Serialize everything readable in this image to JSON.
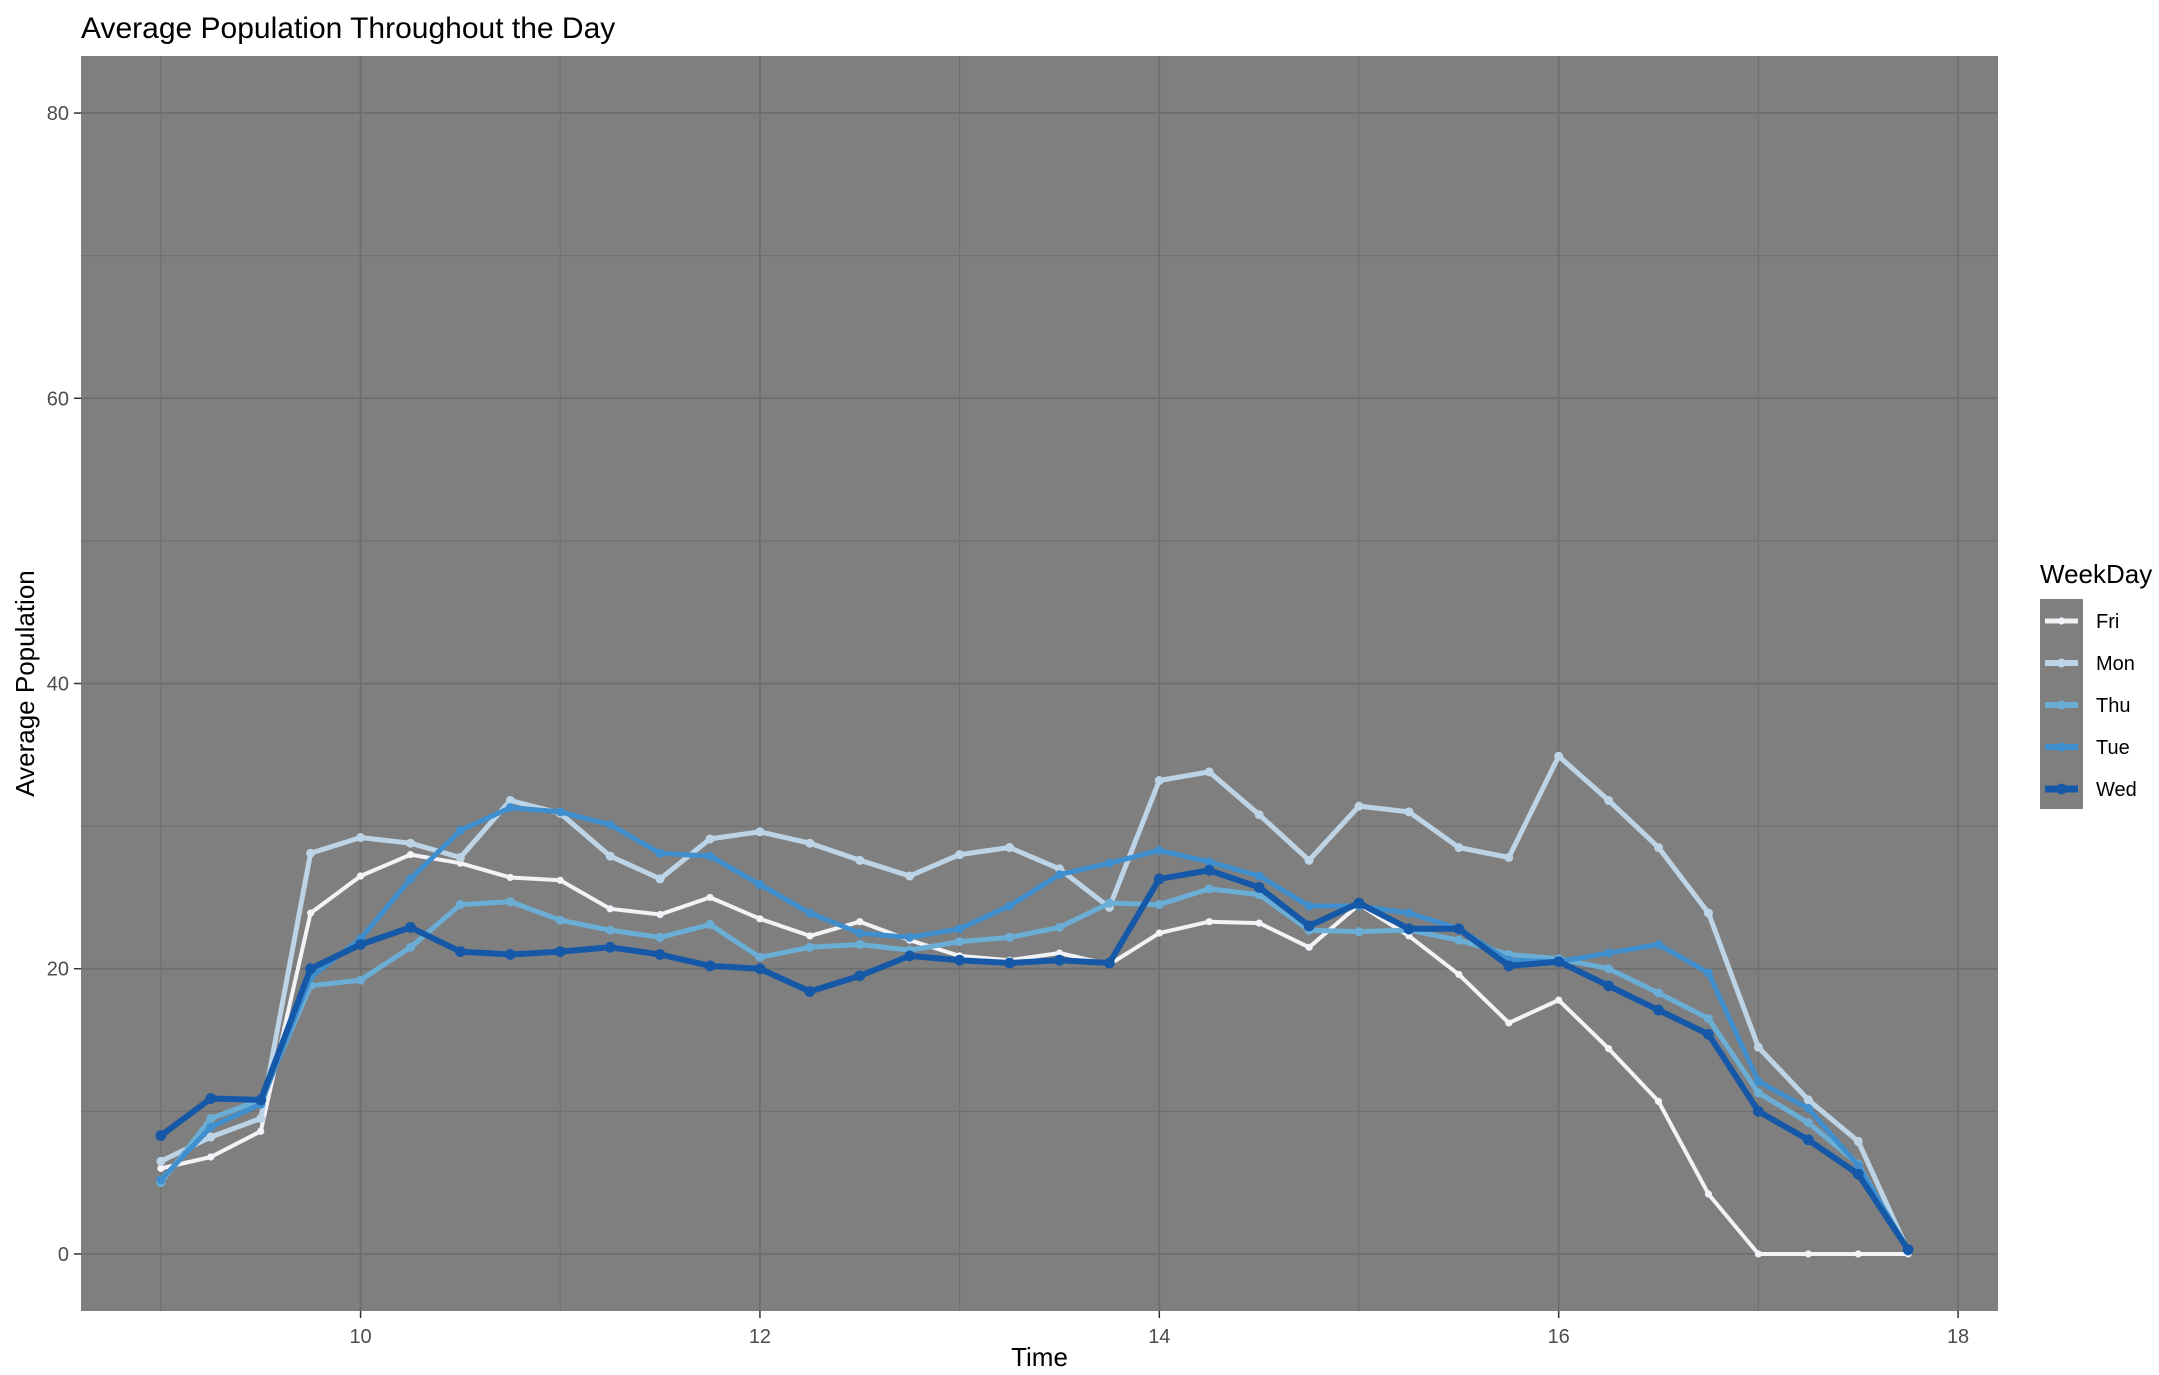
{
  "chart_data": {
    "type": "line",
    "title": "Average Population Throughout the Day",
    "xlabel": "Time",
    "ylabel": "Average Population",
    "xlim": [
      8.6,
      18.2
    ],
    "ylim": [
      -4,
      84
    ],
    "x_ticks": [
      10,
      12,
      14,
      16,
      18
    ],
    "y_ticks": [
      0,
      20,
      40,
      60,
      80
    ],
    "x_tick_labels": [
      "10",
      "12",
      "14",
      "16",
      "18"
    ],
    "y_tick_labels": [
      "0",
      "20",
      "40",
      "60",
      "80"
    ],
    "grid": true,
    "panel_background": "#7f7f7f",
    "grid_color": "#6e6e6e",
    "legend": {
      "title": "WeekDay",
      "placement": "right",
      "background": "#7f7f7f"
    },
    "x": [
      9,
      9.25,
      9.5,
      9.75,
      10,
      10.25,
      10.5,
      10.75,
      11,
      11.25,
      11.5,
      11.75,
      12,
      12.25,
      12.5,
      12.75,
      13,
      13.25,
      13.5,
      13.75,
      14,
      14.25,
      14.5,
      14.75,
      15,
      15.25,
      15.5,
      15.75,
      16,
      16.25,
      16.5,
      16.75,
      17,
      17.25,
      17.5,
      17.75
    ],
    "series": [
      {
        "name": "Fri",
        "color": "#f2f2f7",
        "width": 4,
        "values": [
          6,
          6.8,
          8.6,
          23.9,
          26.5,
          28,
          27.4,
          26.4,
          26.2,
          24.2,
          23.8,
          25,
          23.5,
          22.3,
          23.3,
          22,
          20.9,
          20.6,
          21.1,
          20.3,
          22.5,
          23.3,
          23.2,
          21.5,
          24.5,
          22.3,
          19.6,
          16.2,
          17.8,
          14.4,
          10.7,
          4.2,
          0,
          0,
          0,
          0
        ]
      },
      {
        "name": "Mon",
        "color": "#bdd4e6",
        "width": 5,
        "values": [
          6.5,
          8.2,
          9.5,
          28.1,
          29.2,
          28.8,
          27.8,
          31.8,
          30.9,
          27.9,
          26.3,
          29.1,
          29.6,
          28.8,
          27.6,
          26.5,
          28,
          28.5,
          27,
          24.3,
          33.2,
          33.8,
          30.8,
          27.6,
          31.4,
          31,
          28.5,
          27.8,
          34.9,
          31.8,
          28.5,
          23.9,
          14.5,
          10.8,
          7.9,
          0.2
        ]
      },
      {
        "name": "Thu",
        "color": "#6aaed6",
        "width": 5,
        "values": [
          5,
          9.5,
          10.8,
          18.8,
          19.2,
          21.5,
          24.5,
          24.7,
          23.4,
          22.7,
          22.2,
          23.1,
          20.8,
          21.5,
          21.7,
          21.3,
          21.9,
          22.2,
          22.9,
          24.6,
          24.5,
          25.6,
          25.2,
          22.7,
          22.6,
          22.7,
          22,
          21,
          20.7,
          20,
          18.3,
          16.5,
          11.3,
          9.2,
          6.3,
          0.2
        ]
      },
      {
        "name": "Tue",
        "color": "#3f8fcf",
        "width": 5,
        "values": [
          5.2,
          8.9,
          10.5,
          19.4,
          22.1,
          26.3,
          29.7,
          31.3,
          31,
          30.1,
          28.1,
          27.9,
          25.9,
          23.9,
          22.5,
          22.2,
          22.8,
          24.4,
          26.6,
          27.4,
          28.3,
          27.5,
          26.5,
          24.4,
          24.4,
          23.9,
          22.8,
          20.6,
          20.5,
          21.1,
          21.7,
          19.7,
          12.1,
          10.2,
          6.2,
          0.3
        ]
      },
      {
        "name": "Wed",
        "color": "#1558a8",
        "width": 6,
        "values": [
          8.3,
          10.9,
          10.8,
          20,
          21.7,
          22.9,
          21.2,
          21,
          21.2,
          21.5,
          21,
          20.2,
          20,
          18.4,
          19.5,
          20.9,
          20.6,
          20.4,
          20.6,
          20.4,
          26.3,
          26.9,
          25.7,
          23,
          24.6,
          22.8,
          22.8,
          20.2,
          20.5,
          18.8,
          17.1,
          15.4,
          10,
          8,
          5.6,
          0.3
        ]
      }
    ]
  }
}
